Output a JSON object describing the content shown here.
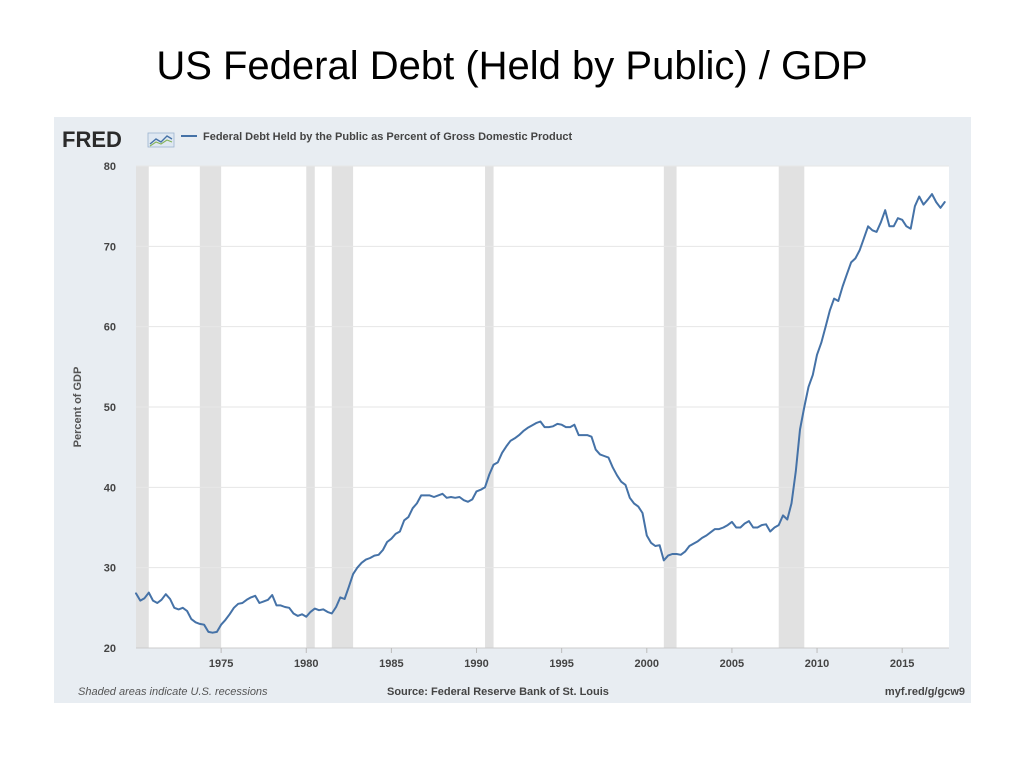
{
  "page": {
    "title": "US Federal Debt (Held by Public) / GDP"
  },
  "fred": {
    "logo_text": "FRED",
    "legend_label": "Federal Debt Held by the Public as Percent of Gross Domestic Product",
    "footer_left": "Shaded areas indicate U.S. recessions",
    "footer_center": "Source: Federal Reserve Bank of St. Louis",
    "footer_right": "myf.red/g/gcw9"
  },
  "colors": {
    "series": "#4572a7",
    "recession": "#e1e1e1",
    "frame": "#e8edf2",
    "grid": "#e6e6e6"
  },
  "chart_data": {
    "type": "line",
    "title": "",
    "xlabel": "",
    "ylabel": "Percent of GDP",
    "xlim": [
      1970.0,
      2017.75
    ],
    "ylim": [
      20,
      80
    ],
    "yticks": [
      20,
      30,
      40,
      50,
      60,
      70,
      80
    ],
    "xticks": [
      1975,
      1980,
      1985,
      1990,
      1995,
      2000,
      2005,
      2010,
      2015
    ],
    "grid": true,
    "legend": "top-left",
    "recessions": [
      [
        1969.75,
        1970.75
      ],
      [
        1973.75,
        1975.0
      ],
      [
        1980.0,
        1980.5
      ],
      [
        1981.5,
        1982.75
      ],
      [
        1990.5,
        1991.0
      ],
      [
        2001.0,
        2001.75
      ],
      [
        2007.75,
        2009.25
      ]
    ],
    "series": [
      {
        "name": "Federal Debt Held by the Public as Percent of Gross Domestic Product",
        "x": [
          1970.0,
          1970.25,
          1970.5,
          1970.75,
          1971.0,
          1971.25,
          1971.5,
          1971.75,
          1972.0,
          1972.25,
          1972.5,
          1972.75,
          1973.0,
          1973.25,
          1973.5,
          1973.75,
          1974.0,
          1974.25,
          1974.5,
          1974.75,
          1975.0,
          1975.25,
          1975.5,
          1975.75,
          1976.0,
          1976.25,
          1976.5,
          1976.75,
          1977.0,
          1977.25,
          1977.5,
          1977.75,
          1978.0,
          1978.25,
          1978.5,
          1978.75,
          1979.0,
          1979.25,
          1979.5,
          1979.75,
          1980.0,
          1980.25,
          1980.5,
          1980.75,
          1981.0,
          1981.25,
          1981.5,
          1981.75,
          1982.0,
          1982.25,
          1982.5,
          1982.75,
          1983.0,
          1983.25,
          1983.5,
          1983.75,
          1984.0,
          1984.25,
          1984.5,
          1984.75,
          1985.0,
          1985.25,
          1985.5,
          1985.75,
          1986.0,
          1986.25,
          1986.5,
          1986.75,
          1987.0,
          1987.25,
          1987.5,
          1987.75,
          1988.0,
          1988.25,
          1988.5,
          1988.75,
          1989.0,
          1989.25,
          1989.5,
          1989.75,
          1990.0,
          1990.25,
          1990.5,
          1990.75,
          1991.0,
          1991.25,
          1991.5,
          1991.75,
          1992.0,
          1992.25,
          1992.5,
          1992.75,
          1993.0,
          1993.25,
          1993.5,
          1993.75,
          1994.0,
          1994.25,
          1994.5,
          1994.75,
          1995.0,
          1995.25,
          1995.5,
          1995.75,
          1996.0,
          1996.25,
          1996.5,
          1996.75,
          1997.0,
          1997.25,
          1997.5,
          1997.75,
          1998.0,
          1998.25,
          1998.5,
          1998.75,
          1999.0,
          1999.25,
          1999.5,
          1999.75,
          2000.0,
          2000.25,
          2000.5,
          2000.75,
          2001.0,
          2001.25,
          2001.5,
          2001.75,
          2002.0,
          2002.25,
          2002.5,
          2002.75,
          2003.0,
          2003.25,
          2003.5,
          2003.75,
          2004.0,
          2004.25,
          2004.5,
          2004.75,
          2005.0,
          2005.25,
          2005.5,
          2005.75,
          2006.0,
          2006.25,
          2006.5,
          2006.75,
          2007.0,
          2007.25,
          2007.5,
          2007.75,
          2008.0,
          2008.25,
          2008.5,
          2008.75,
          2009.0,
          2009.25,
          2009.5,
          2009.75,
          2010.0,
          2010.25,
          2010.5,
          2010.75,
          2011.0,
          2011.25,
          2011.5,
          2011.75,
          2012.0,
          2012.25,
          2012.5,
          2012.75,
          2013.0,
          2013.25,
          2013.5,
          2013.75,
          2014.0,
          2014.25,
          2014.5,
          2014.75,
          2015.0,
          2015.25,
          2015.5,
          2015.75,
          2016.0,
          2016.25,
          2016.5,
          2016.75,
          2017.0,
          2017.25,
          2017.5
        ],
        "values": [
          26.8,
          25.9,
          26.2,
          26.9,
          25.9,
          25.6,
          26.0,
          26.7,
          26.1,
          25.0,
          24.8,
          25.0,
          24.6,
          23.6,
          23.2,
          23.0,
          22.9,
          22.0,
          21.9,
          22.0,
          22.9,
          23.5,
          24.2,
          25.0,
          25.5,
          25.6,
          26.0,
          26.3,
          26.5,
          25.6,
          25.8,
          26.0,
          26.6,
          25.3,
          25.3,
          25.1,
          25.0,
          24.3,
          24.0,
          24.2,
          23.9,
          24.5,
          24.9,
          24.7,
          24.8,
          24.5,
          24.3,
          25.1,
          26.3,
          26.1,
          27.6,
          29.2,
          30.0,
          30.6,
          31.0,
          31.2,
          31.5,
          31.6,
          32.2,
          33.2,
          33.6,
          34.2,
          34.5,
          35.9,
          36.3,
          37.4,
          38.0,
          39.0,
          39.0,
          39.0,
          38.8,
          39.0,
          39.2,
          38.7,
          38.8,
          38.7,
          38.8,
          38.4,
          38.2,
          38.5,
          39.5,
          39.7,
          40.0,
          41.6,
          42.8,
          43.1,
          44.3,
          45.1,
          45.8,
          46.1,
          46.5,
          47.0,
          47.4,
          47.7,
          48.0,
          48.2,
          47.5,
          47.5,
          47.6,
          47.9,
          47.8,
          47.5,
          47.5,
          47.8,
          46.5,
          46.5,
          46.5,
          46.3,
          44.7,
          44.1,
          43.9,
          43.7,
          42.5,
          41.5,
          40.7,
          40.3,
          38.7,
          38.0,
          37.6,
          36.8,
          34.0,
          33.1,
          32.7,
          32.8,
          30.9,
          31.5,
          31.7,
          31.7,
          31.6,
          32.0,
          32.7,
          33.0,
          33.3,
          33.7,
          34.0,
          34.4,
          34.8,
          34.8,
          35.0,
          35.3,
          35.7,
          35.0,
          35.0,
          35.5,
          35.8,
          35.0,
          35.0,
          35.3,
          35.4,
          34.5,
          35.0,
          35.3,
          36.5,
          36.0,
          38.0,
          42.0,
          47.2,
          50.0,
          52.5,
          54.0,
          56.5,
          58.0,
          60.0,
          62.0,
          63.5,
          63.2,
          65.0,
          66.5,
          68.0,
          68.5,
          69.5,
          71.0,
          72.5,
          72.0,
          71.8,
          73.0,
          74.5,
          72.5,
          72.5,
          73.5,
          73.3,
          72.5,
          72.2,
          75.0,
          76.2,
          75.2,
          75.8,
          76.5,
          75.5,
          74.8,
          75.5
        ]
      }
    ]
  }
}
